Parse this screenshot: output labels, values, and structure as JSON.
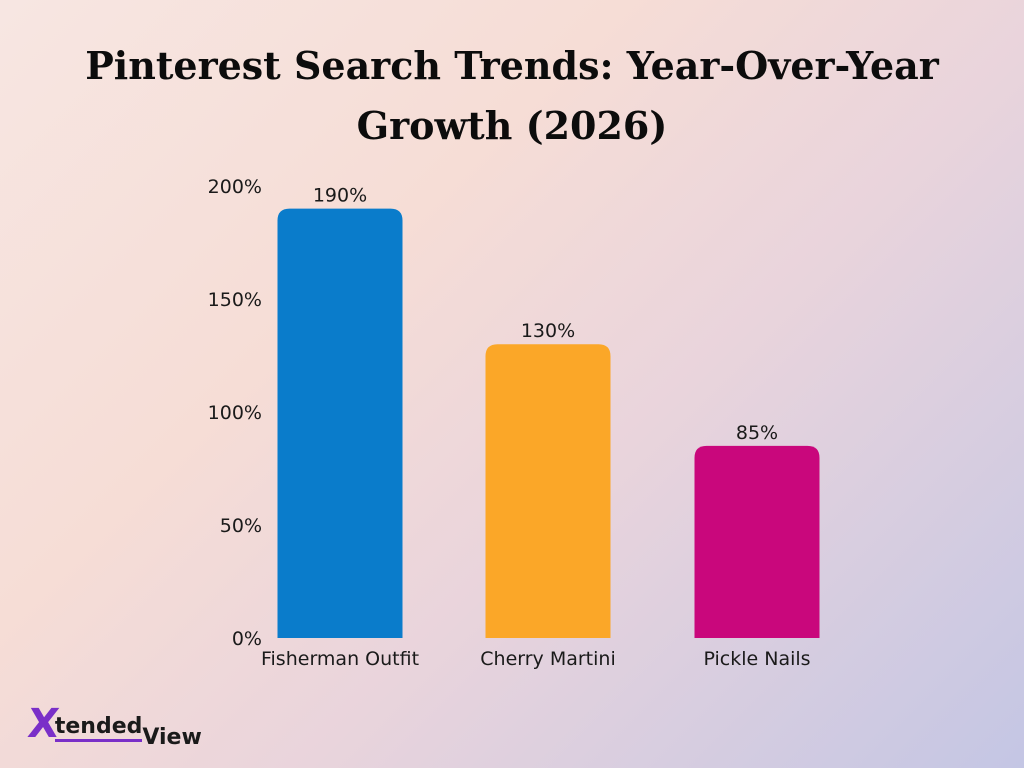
{
  "chart_data": {
    "type": "bar",
    "title_lines": [
      "Pinterest Search Trends: Year-Over-Year",
      "Growth (2026)"
    ],
    "categories": [
      "Fisherman Outfit",
      "Cherry Martini",
      "Pickle Nails"
    ],
    "values": [
      190,
      130,
      85
    ],
    "value_labels": [
      "190%",
      "130%",
      "85%"
    ],
    "colors": [
      "#0a7ccb",
      "#fba728",
      "#c9077c"
    ],
    "ylim": [
      0,
      200
    ],
    "yticks": [
      0,
      50,
      100,
      150,
      200
    ],
    "ytick_labels": [
      "0%",
      "50%",
      "100%",
      "150%",
      "200%"
    ],
    "grid": false,
    "legend": "none"
  },
  "brand": {
    "logo_mark": "X",
    "logo_text_a": "tended",
    "logo_text_b": "View",
    "accent": "#7a2fc8"
  }
}
